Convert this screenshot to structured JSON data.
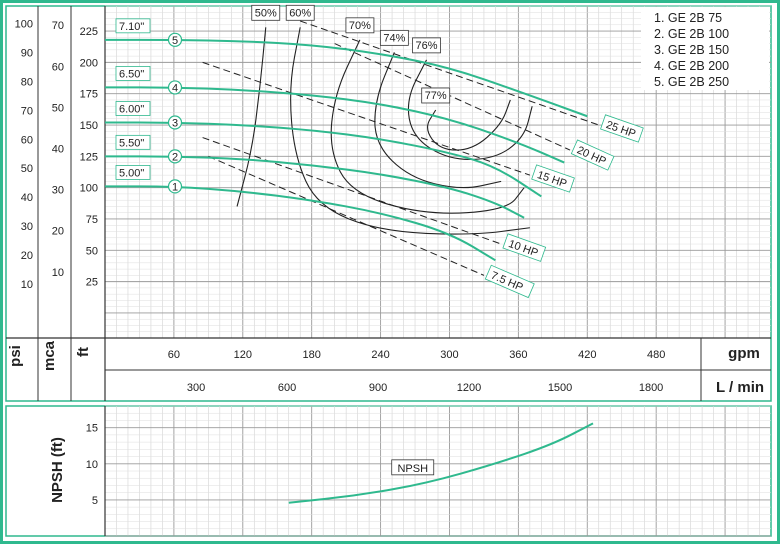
{
  "chart_data": {
    "type": "line",
    "title": "",
    "legend": {
      "placement": "top-right",
      "items": [
        "1. GE 2B 75",
        "2. GE 2B 100",
        "3. GE 2B 150",
        "4. GE 2B 200",
        "5. GE 2B 250"
      ]
    },
    "x_axis": {
      "unit": "gpm",
      "ticks": [
        "60",
        "120",
        "180",
        "240",
        "300",
        "360",
        "420",
        "480"
      ],
      "tick_values": [
        60,
        120,
        180,
        240,
        300,
        360,
        420,
        480
      ],
      "range": [
        0,
        580
      ]
    },
    "x_axis_secondary": {
      "unit": "L / min",
      "ticks": [
        "300",
        "600",
        "900",
        "1200",
        "1500",
        "1800"
      ],
      "tick_values": [
        300,
        600,
        900,
        1200,
        1500,
        1800
      ]
    },
    "y_axis": {
      "unit": "ft",
      "ticks": [
        "25",
        "50",
        "75",
        "100",
        "125",
        "150",
        "175",
        "200",
        "225"
      ],
      "tick_values": [
        25,
        50,
        75,
        100,
        125,
        150,
        175,
        200,
        225
      ],
      "range": [
        -20,
        245
      ]
    },
    "y_axis_psi": {
      "unit": "psi",
      "ticks": [
        "10",
        "20",
        "30",
        "40",
        "50",
        "60",
        "70",
        "80",
        "90",
        "100"
      ],
      "tick_values": [
        10,
        20,
        30,
        40,
        50,
        60,
        70,
        80,
        90,
        100
      ]
    },
    "y_axis_mca": {
      "unit": "mca",
      "ticks": [
        "10",
        "20",
        "30",
        "40",
        "50",
        "60",
        "70"
      ],
      "tick_values": [
        10,
        20,
        30,
        40,
        50,
        60,
        70
      ]
    },
    "series": [
      {
        "name": "1",
        "impeller": "5.00\"",
        "color": "#2fb98e",
        "points": [
          [
            0,
            101
          ],
          [
            60,
            101
          ],
          [
            120,
            97
          ],
          [
            180,
            90
          ],
          [
            240,
            80
          ],
          [
            300,
            64
          ],
          [
            340,
            42
          ]
        ]
      },
      {
        "name": "2",
        "impeller": "5.50\"",
        "color": "#2fb98e",
        "points": [
          [
            0,
            125
          ],
          [
            60,
            125
          ],
          [
            120,
            123
          ],
          [
            180,
            118
          ],
          [
            240,
            111
          ],
          [
            300,
            100
          ],
          [
            340,
            88
          ],
          [
            365,
            76
          ]
        ]
      },
      {
        "name": "3",
        "impeller": "6.00\"",
        "color": "#2fb98e",
        "points": [
          [
            0,
            152
          ],
          [
            60,
            152
          ],
          [
            120,
            150
          ],
          [
            180,
            146
          ],
          [
            240,
            139
          ],
          [
            300,
            128
          ],
          [
            340,
            117
          ],
          [
            380,
            93
          ]
        ]
      },
      {
        "name": "4",
        "impeller": "6.50\"",
        "color": "#2fb98e",
        "points": [
          [
            0,
            180
          ],
          [
            60,
            180
          ],
          [
            120,
            178
          ],
          [
            180,
            174
          ],
          [
            240,
            167
          ],
          [
            300,
            155
          ],
          [
            360,
            136
          ],
          [
            400,
            120
          ]
        ]
      },
      {
        "name": "5",
        "impeller": "7.10\"",
        "color": "#2fb98e",
        "points": [
          [
            0,
            218
          ],
          [
            60,
            218
          ],
          [
            120,
            217
          ],
          [
            180,
            214
          ],
          [
            240,
            207
          ],
          [
            300,
            196
          ],
          [
            360,
            177
          ],
          [
            420,
            157
          ]
        ]
      }
    ],
    "efficiency_curves": [
      {
        "label": "50%",
        "points": [
          [
            140,
            228
          ],
          [
            135,
            180
          ],
          [
            128,
            130
          ],
          [
            115,
            85
          ]
        ]
      },
      {
        "label": "60%",
        "points": [
          [
            170,
            228
          ],
          [
            160,
            180
          ],
          [
            165,
            125
          ],
          [
            185,
            85
          ],
          [
            240,
            65
          ],
          [
            320,
            62
          ],
          [
            370,
            68
          ]
        ]
      },
      {
        "label": "70%",
        "points": [
          [
            222,
            218
          ],
          [
            200,
            175
          ],
          [
            195,
            130
          ],
          [
            215,
            95
          ],
          [
            280,
            78
          ],
          [
            350,
            82
          ],
          [
            365,
            100
          ]
        ]
      },
      {
        "label": "74%",
        "points": [
          [
            252,
            208
          ],
          [
            235,
            170
          ],
          [
            235,
            135
          ],
          [
            265,
            108
          ],
          [
            310,
            98
          ],
          [
            345,
            105
          ]
        ]
      },
      {
        "label": "76%",
        "points": [
          [
            280,
            202
          ],
          [
            262,
            170
          ],
          [
            268,
            140
          ],
          [
            300,
            122
          ],
          [
            340,
            123
          ],
          [
            365,
            140
          ],
          [
            372,
            165
          ]
        ]
      },
      {
        "label": "77%",
        "points": [
          [
            288,
            162
          ],
          [
            278,
            147
          ],
          [
            292,
            130
          ],
          [
            320,
            130
          ],
          [
            345,
            150
          ],
          [
            353,
            170
          ]
        ]
      }
    ],
    "power_lines": [
      {
        "label": "25 HP",
        "points": [
          [
            170,
            233
          ],
          [
            430,
            150
          ]
        ]
      },
      {
        "label": "20 HP",
        "points": [
          [
            200,
            215
          ],
          [
            405,
            130
          ]
        ]
      },
      {
        "label": "15 HP",
        "points": [
          [
            85,
            200
          ],
          [
            370,
            110
          ]
        ]
      },
      {
        "label": "10 HP",
        "points": [
          [
            85,
            140
          ],
          [
            345,
            55
          ]
        ]
      },
      {
        "label": "7.5 HP",
        "points": [
          [
            90,
            125
          ],
          [
            330,
            30
          ]
        ]
      }
    ],
    "npsh": {
      "ylabel": "NPSH (ft)",
      "label": "NPSH",
      "ticks": [
        "5",
        "10",
        "15"
      ],
      "tick_values": [
        5,
        10,
        15
      ],
      "range": [
        0,
        18
      ],
      "points": [
        [
          160,
          4.6
        ],
        [
          220,
          5.6
        ],
        [
          280,
          7.3
        ],
        [
          340,
          10
        ],
        [
          390,
          12.7
        ],
        [
          425,
          15.6
        ]
      ]
    },
    "colors": {
      "border": "#2fb98e",
      "pump_curve": "#2fb98e",
      "lines": "#222222",
      "grid": "#c8c8c8"
    }
  }
}
